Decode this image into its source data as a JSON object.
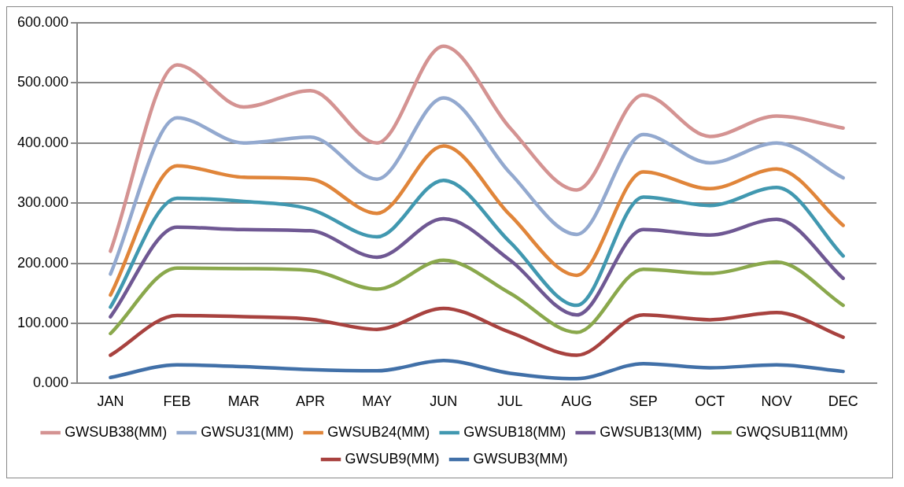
{
  "chart_data": {
    "type": "line",
    "categories": [
      "JAN",
      "FEB",
      "MAR",
      "APR",
      "MAY",
      "JUN",
      "JUL",
      "AUG",
      "SEP",
      "OCT",
      "NOV",
      "DEC"
    ],
    "ylim": [
      0,
      600
    ],
    "yticks": [
      {
        "value": 0,
        "label": "0.000"
      },
      {
        "value": 100,
        "label": "100.000"
      },
      {
        "value": 200,
        "label": "200.000"
      },
      {
        "value": 300,
        "label": "300.000"
      },
      {
        "value": 400,
        "label": "400.000"
      },
      {
        "value": 500,
        "label": "500.000"
      },
      {
        "value": 600,
        "label": "600.000"
      }
    ],
    "grid": "y",
    "legend": "bottom",
    "marker": "none",
    "line_style": "solid",
    "series": [
      {
        "name": "GWSUB38(MM)",
        "color": "#d49392",
        "values": [
          220,
          530,
          460,
          487,
          400,
          561,
          425,
          322,
          480,
          411,
          445,
          425
        ]
      },
      {
        "name": "GWSU31(MM)",
        "color": "#93a9cf",
        "values": [
          182,
          442,
          400,
          410,
          340,
          475,
          350,
          248,
          414,
          367,
          400,
          342
        ]
      },
      {
        "name": "GWSUB24(MM)",
        "color": "#e0853a",
        "values": [
          147,
          362,
          343,
          340,
          283,
          395,
          280,
          180,
          352,
          324,
          357,
          263
        ]
      },
      {
        "name": "GWSUB18(MM)",
        "color": "#4198b0",
        "values": [
          127,
          308,
          303,
          290,
          244,
          338,
          235,
          130,
          310,
          296,
          326,
          212
        ]
      },
      {
        "name": "GWSUB13(MM)",
        "color": "#6f5893",
        "values": [
          111,
          260,
          256,
          254,
          210,
          274,
          205,
          114,
          256,
          247,
          273,
          175
        ]
      },
      {
        "name": "GWQSUB11(MM)",
        "color": "#8aa84c",
        "values": [
          83,
          192,
          191,
          188,
          157,
          205,
          150,
          85,
          190,
          183,
          202,
          130
        ]
      },
      {
        "name": "GWSUB9(MM)",
        "color": "#a8423f",
        "values": [
          47,
          113,
          111,
          107,
          90,
          125,
          85,
          47,
          114,
          106,
          118,
          77
        ]
      },
      {
        "name": "GWSUB3(MM)",
        "color": "#4170a8",
        "values": [
          10,
          31,
          28,
          23,
          21,
          38,
          17,
          8,
          33,
          26,
          31,
          20
        ]
      }
    ]
  }
}
